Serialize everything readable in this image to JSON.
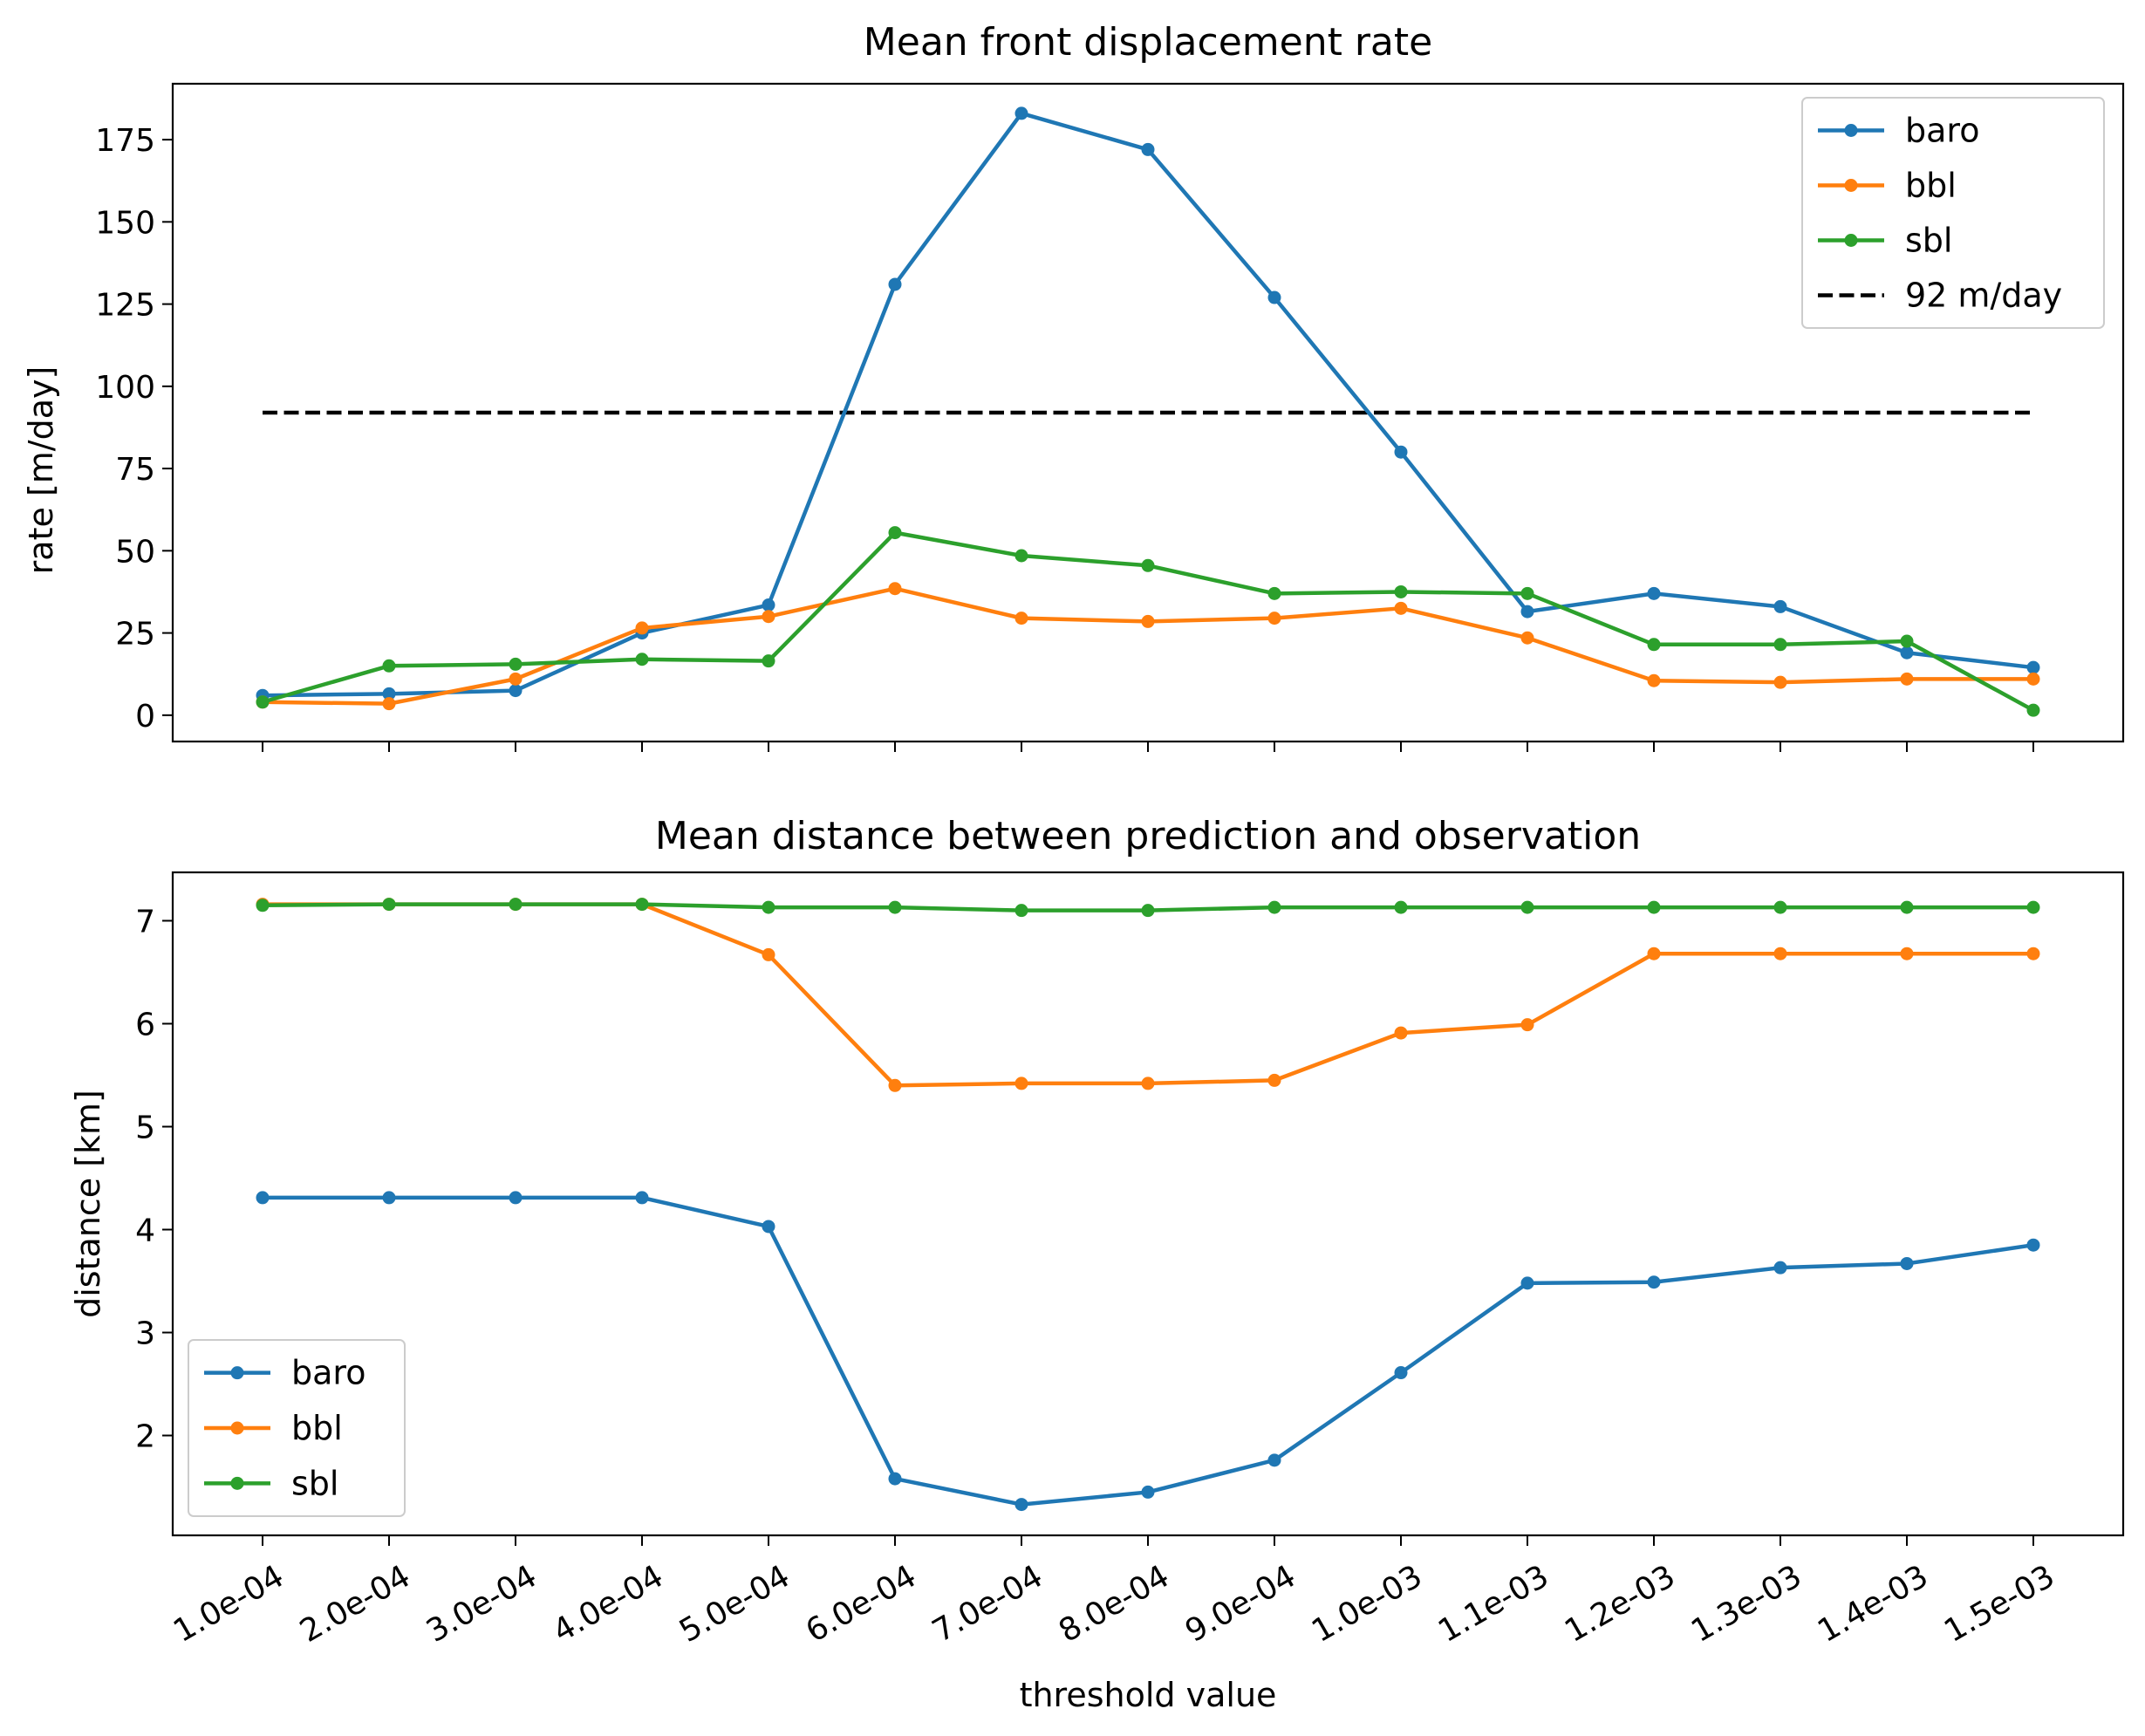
{
  "colors": {
    "baro": "#1f77b4",
    "bbl": "#ff7f0e",
    "sbl": "#2ca02c",
    "reference": "#000000"
  },
  "chart_data": [
    {
      "type": "line",
      "title": "Mean front displacement rate",
      "xlabel": "",
      "ylabel": "rate [m/day]",
      "categories": [
        "1.0e-04",
        "2.0e-04",
        "3.0e-04",
        "4.0e-04",
        "5.0e-04",
        "6.0e-04",
        "7.0e-04",
        "8.0e-04",
        "9.0e-04",
        "1.0e-03",
        "1.1e-03",
        "1.2e-03",
        "1.3e-03",
        "1.4e-03",
        "1.5e-03"
      ],
      "ylim": [
        -8,
        192
      ],
      "yticks": [
        0,
        25,
        50,
        75,
        100,
        125,
        150,
        175
      ],
      "show_xtick_labels": false,
      "series": [
        {
          "name": "baro",
          "color": "#1f77b4",
          "marker": "o",
          "values": [
            6,
            6.5,
            7.5,
            25,
            33.5,
            131,
            183,
            172,
            127,
            80,
            31.5,
            37,
            33,
            19,
            14.5
          ]
        },
        {
          "name": "bbl",
          "color": "#ff7f0e",
          "marker": "o",
          "values": [
            4,
            3.5,
            11,
            26.5,
            30,
            38.5,
            29.5,
            28.5,
            29.5,
            32.5,
            23.5,
            10.5,
            10,
            11,
            11
          ]
        },
        {
          "name": "sbl",
          "color": "#2ca02c",
          "marker": "o",
          "values": [
            4,
            15,
            15.5,
            17,
            16.5,
            55.5,
            48.5,
            45.5,
            37,
            37.5,
            37,
            21.5,
            21.5,
            22.5,
            1.5
          ]
        }
      ],
      "reference_line": {
        "name": "92 m/day",
        "value": 92,
        "color": "#000000",
        "style": "dashed"
      },
      "legend": {
        "placement": "top-right",
        "entries": [
          "baro",
          "bbl",
          "sbl",
          "92 m/day"
        ]
      },
      "grid": false
    },
    {
      "type": "line",
      "title": "Mean distance between prediction and observation",
      "xlabel": "threshold value",
      "ylabel": "distance [km]",
      "categories": [
        "1.0e-04",
        "2.0e-04",
        "3.0e-04",
        "4.0e-04",
        "5.0e-04",
        "6.0e-04",
        "7.0e-04",
        "8.0e-04",
        "9.0e-04",
        "1.0e-03",
        "1.1e-03",
        "1.2e-03",
        "1.3e-03",
        "1.4e-03",
        "1.5e-03"
      ],
      "ylim": [
        1.03,
        7.47
      ],
      "yticks": [
        2,
        3,
        4,
        5,
        6,
        7
      ],
      "show_xtick_labels": true,
      "series": [
        {
          "name": "baro",
          "color": "#1f77b4",
          "marker": "o",
          "values": [
            4.31,
            4.31,
            4.31,
            4.31,
            4.03,
            1.58,
            1.33,
            1.45,
            1.76,
            2.61,
            3.48,
            3.49,
            3.63,
            3.67,
            3.85
          ]
        },
        {
          "name": "bbl",
          "color": "#ff7f0e",
          "marker": "o",
          "values": [
            7.16,
            7.16,
            7.16,
            7.16,
            6.67,
            5.4,
            5.42,
            5.42,
            5.45,
            5.91,
            5.99,
            6.68,
            6.68,
            6.68,
            6.68
          ]
        },
        {
          "name": "sbl",
          "color": "#2ca02c",
          "marker": "o",
          "values": [
            7.15,
            7.16,
            7.16,
            7.16,
            7.13,
            7.13,
            7.1,
            7.1,
            7.13,
            7.13,
            7.13,
            7.13,
            7.13,
            7.13,
            7.13
          ]
        }
      ],
      "legend": {
        "placement": "bottom-left",
        "entries": [
          "baro",
          "bbl",
          "sbl"
        ]
      },
      "grid": false
    }
  ]
}
